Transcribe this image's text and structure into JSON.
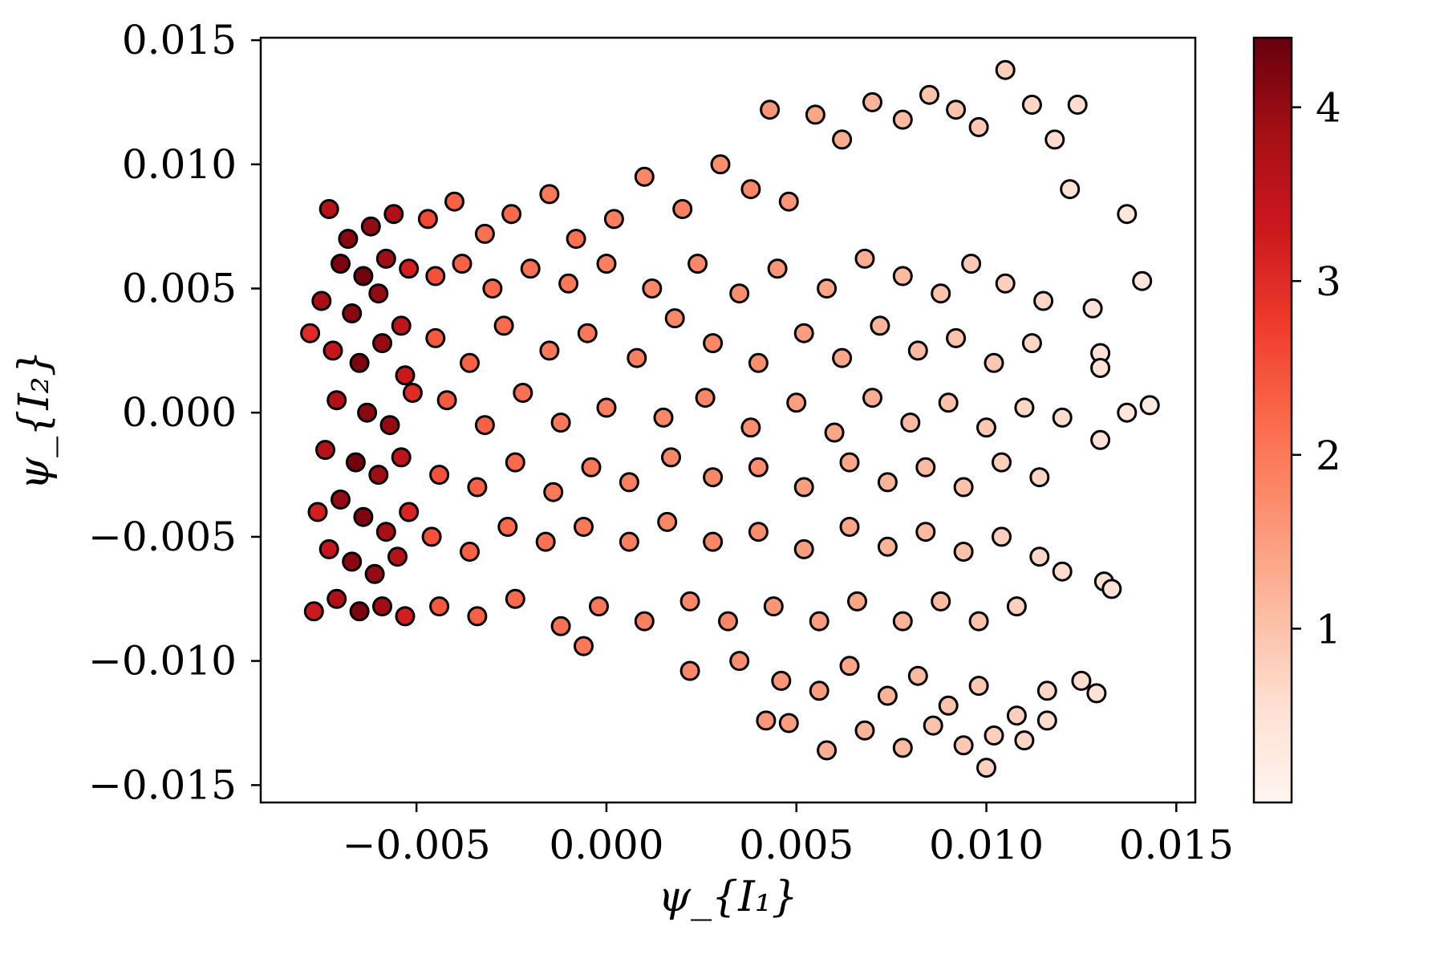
{
  "chart_data": {
    "type": "scatter",
    "xlabel": "ψ_{I₁}",
    "ylabel": "ψ_{I₂}",
    "xlim": [
      -0.0091,
      0.0155
    ],
    "ylim": [
      -0.0157,
      0.0151
    ],
    "x_ticks": [
      -0.005,
      0.0,
      0.005,
      0.01,
      0.015
    ],
    "x_tick_labels": [
      "−0.005",
      "0.000",
      "0.005",
      "0.010",
      "0.015"
    ],
    "y_ticks": [
      0.015,
      0.01,
      0.005,
      0.0,
      -0.005,
      -0.01,
      -0.015
    ],
    "y_tick_labels": [
      "0.015",
      "0.010",
      "0.005",
      "0.000",
      "−0.005",
      "−0.010",
      "−0.015"
    ],
    "grid": false,
    "colormap": "Reds",
    "colorbar": {
      "range": [
        0,
        4.4
      ],
      "ticks": [
        1,
        2,
        3,
        4
      ],
      "tick_labels": [
        "1",
        "2",
        "3",
        "4"
      ],
      "colors": [
        "#fff5f0",
        "#fee0d2",
        "#fcbba1",
        "#fc9272",
        "#fb6a4a",
        "#ef3b2c",
        "#cb181d",
        "#a50f15",
        "#67000d"
      ]
    },
    "marker": {
      "edge_color": "#000000",
      "shape": "circle"
    },
    "points": [
      [
        -0.0073,
        0.0082,
        3.6
      ],
      [
        -0.0068,
        0.007,
        4.1
      ],
      [
        -0.0062,
        0.0075,
        4.0
      ],
      [
        -0.0056,
        0.008,
        3.7
      ],
      [
        -0.007,
        0.006,
        4.2
      ],
      [
        -0.0064,
        0.0055,
        4.3
      ],
      [
        -0.0058,
        0.0062,
        3.9
      ],
      [
        -0.0052,
        0.0058,
        3.2
      ],
      [
        -0.0075,
        0.0045,
        3.8
      ],
      [
        -0.0067,
        0.004,
        4.1
      ],
      [
        -0.006,
        0.0048,
        4.0
      ],
      [
        -0.0054,
        0.0035,
        3.5
      ],
      [
        -0.0072,
        0.0025,
        3.4
      ],
      [
        -0.0065,
        0.002,
        4.2
      ],
      [
        -0.0059,
        0.0028,
        4.0
      ],
      [
        -0.0053,
        0.0015,
        3.3
      ],
      [
        -0.0071,
        0.0005,
        3.7
      ],
      [
        -0.0063,
        0.0,
        4.1
      ],
      [
        -0.0057,
        -0.0005,
        4.0
      ],
      [
        -0.0051,
        0.0008,
        3.0
      ],
      [
        -0.0074,
        -0.0015,
        3.6
      ],
      [
        -0.0066,
        -0.002,
        4.3
      ],
      [
        -0.006,
        -0.0025,
        3.9
      ],
      [
        -0.0054,
        -0.0018,
        3.5
      ],
      [
        -0.007,
        -0.0035,
        4.0
      ],
      [
        -0.0064,
        -0.0042,
        4.2
      ],
      [
        -0.0058,
        -0.0048,
        3.8
      ],
      [
        -0.0052,
        -0.004,
        3.1
      ],
      [
        -0.0073,
        -0.0055,
        3.4
      ],
      [
        -0.0067,
        -0.006,
        4.1
      ],
      [
        -0.0061,
        -0.0065,
        4.0
      ],
      [
        -0.0055,
        -0.0058,
        3.6
      ],
      [
        -0.0071,
        -0.0075,
        3.7
      ],
      [
        -0.0065,
        -0.008,
        4.2
      ],
      [
        -0.0059,
        -0.0078,
        3.9
      ],
      [
        -0.0053,
        -0.0082,
        3.2
      ],
      [
        -0.0078,
        0.0032,
        3.0
      ],
      [
        -0.0076,
        -0.004,
        3.2
      ],
      [
        -0.0077,
        -0.008,
        3.3
      ],
      [
        -0.0047,
        0.0078,
        2.6
      ],
      [
        -0.004,
        0.0085,
        2.3
      ],
      [
        -0.0032,
        0.0072,
        2.1
      ],
      [
        -0.0025,
        0.008,
        2.2
      ],
      [
        -0.0015,
        0.0088,
        2.0
      ],
      [
        -0.0008,
        0.007,
        2.1
      ],
      [
        0.0002,
        0.0078,
        1.9
      ],
      [
        0.001,
        0.0095,
        1.8
      ],
      [
        0.002,
        0.0082,
        1.9
      ],
      [
        0.003,
        0.01,
        1.7
      ],
      [
        0.0038,
        0.009,
        1.8
      ],
      [
        0.0043,
        0.0122,
        1.6
      ],
      [
        0.0048,
        0.0085,
        1.6
      ],
      [
        0.0055,
        0.012,
        1.4
      ],
      [
        0.0062,
        0.011,
        1.3
      ],
      [
        0.007,
        0.0125,
        1.2
      ],
      [
        0.0078,
        0.0118,
        1.1
      ],
      [
        0.0085,
        0.0128,
        1.0
      ],
      [
        0.0092,
        0.0122,
        1.0
      ],
      [
        0.0098,
        0.0115,
        0.9
      ],
      [
        0.0105,
        0.0138,
        0.8
      ],
      [
        0.0112,
        0.0124,
        0.7
      ],
      [
        0.0118,
        0.011,
        0.6
      ],
      [
        0.0124,
        0.0124,
        0.6
      ],
      [
        0.0122,
        0.009,
        0.5
      ],
      [
        -0.0045,
        0.0055,
        2.5
      ],
      [
        -0.0038,
        0.006,
        2.3
      ],
      [
        -0.003,
        0.005,
        2.2
      ],
      [
        -0.002,
        0.0058,
        2.1
      ],
      [
        -0.001,
        0.0052,
        2.0
      ],
      [
        0.0,
        0.006,
        1.9
      ],
      [
        0.0012,
        0.005,
        1.8
      ],
      [
        0.0024,
        0.006,
        1.8
      ],
      [
        0.0035,
        0.0048,
        1.7
      ],
      [
        0.0045,
        0.0058,
        1.6
      ],
      [
        0.0058,
        0.005,
        1.4
      ],
      [
        0.0068,
        0.0062,
        1.3
      ],
      [
        0.0078,
        0.0055,
        1.1
      ],
      [
        0.0088,
        0.0048,
        1.0
      ],
      [
        0.0096,
        0.006,
        0.9
      ],
      [
        0.0105,
        0.0052,
        0.8
      ],
      [
        0.0115,
        0.0045,
        0.7
      ],
      [
        0.0128,
        0.0042,
        0.5
      ],
      [
        0.0141,
        0.0053,
        0.4
      ],
      [
        0.0137,
        0.008,
        0.4
      ],
      [
        -0.0045,
        0.003,
        2.4
      ],
      [
        -0.0036,
        0.002,
        2.3
      ],
      [
        -0.0027,
        0.0035,
        2.2
      ],
      [
        -0.0015,
        0.0025,
        2.0
      ],
      [
        -0.0005,
        0.0032,
        2.0
      ],
      [
        0.0008,
        0.0022,
        1.9
      ],
      [
        0.0018,
        0.0038,
        1.8
      ],
      [
        0.0028,
        0.0028,
        1.8
      ],
      [
        0.004,
        0.002,
        1.7
      ],
      [
        0.0052,
        0.0032,
        1.5
      ],
      [
        0.0062,
        0.0022,
        1.4
      ],
      [
        0.0072,
        0.0035,
        1.2
      ],
      [
        0.0082,
        0.0025,
        1.1
      ],
      [
        0.0092,
        0.003,
        1.0
      ],
      [
        0.0102,
        0.002,
        0.9
      ],
      [
        0.0112,
        0.0028,
        0.7
      ],
      [
        0.013,
        0.0024,
        0.5
      ],
      [
        0.013,
        0.0018,
        0.5
      ],
      [
        -0.0042,
        0.0005,
        2.4
      ],
      [
        -0.0032,
        -0.0005,
        2.3
      ],
      [
        -0.0022,
        0.0008,
        2.1
      ],
      [
        -0.0012,
        -0.0004,
        2.0
      ],
      [
        0.0,
        0.0002,
        1.9
      ],
      [
        0.0015,
        -0.0002,
        1.8
      ],
      [
        0.0026,
        0.0006,
        1.8
      ],
      [
        0.0038,
        -0.0006,
        1.7
      ],
      [
        0.005,
        0.0004,
        1.5
      ],
      [
        0.006,
        -0.0008,
        1.4
      ],
      [
        0.007,
        0.0006,
        1.3
      ],
      [
        0.008,
        -0.0004,
        1.1
      ],
      [
        0.009,
        0.0004,
        1.0
      ],
      [
        0.01,
        -0.0006,
        0.9
      ],
      [
        0.011,
        0.0002,
        0.7
      ],
      [
        0.012,
        -0.0002,
        0.6
      ],
      [
        0.0137,
        0.0,
        0.4
      ],
      [
        0.0143,
        0.0003,
        0.3
      ],
      [
        -0.0044,
        -0.0025,
        2.5
      ],
      [
        -0.0034,
        -0.003,
        2.3
      ],
      [
        -0.0024,
        -0.002,
        2.2
      ],
      [
        -0.0014,
        -0.0032,
        2.0
      ],
      [
        -0.0004,
        -0.0022,
        2.0
      ],
      [
        0.0006,
        -0.0028,
        1.9
      ],
      [
        0.0017,
        -0.0018,
        1.8
      ],
      [
        0.0028,
        -0.0026,
        1.8
      ],
      [
        0.004,
        -0.0022,
        1.7
      ],
      [
        0.0052,
        -0.003,
        1.5
      ],
      [
        0.0064,
        -0.002,
        1.4
      ],
      [
        0.0074,
        -0.0028,
        1.2
      ],
      [
        0.0084,
        -0.0022,
        1.1
      ],
      [
        0.0094,
        -0.003,
        1.0
      ],
      [
        0.0104,
        -0.002,
        0.8
      ],
      [
        0.0114,
        -0.0026,
        0.7
      ],
      [
        0.013,
        -0.0011,
        0.5
      ],
      [
        -0.0046,
        -0.005,
        2.5
      ],
      [
        -0.0036,
        -0.0056,
        2.3
      ],
      [
        -0.0026,
        -0.0046,
        2.2
      ],
      [
        -0.0016,
        -0.0052,
        2.1
      ],
      [
        -0.0006,
        -0.0046,
        2.0
      ],
      [
        0.0006,
        -0.0052,
        1.9
      ],
      [
        0.0016,
        -0.0044,
        1.8
      ],
      [
        0.0028,
        -0.0052,
        1.8
      ],
      [
        0.004,
        -0.0048,
        1.7
      ],
      [
        0.0052,
        -0.0055,
        1.5
      ],
      [
        0.0064,
        -0.0046,
        1.4
      ],
      [
        0.0074,
        -0.0054,
        1.2
      ],
      [
        0.0084,
        -0.0048,
        1.1
      ],
      [
        0.0094,
        -0.0056,
        1.0
      ],
      [
        0.0104,
        -0.005,
        0.8
      ],
      [
        0.0114,
        -0.0058,
        0.7
      ],
      [
        -0.0044,
        -0.0078,
        2.4
      ],
      [
        -0.0034,
        -0.0082,
        2.3
      ],
      [
        -0.0024,
        -0.0075,
        2.2
      ],
      [
        -0.0012,
        -0.0086,
        2.1
      ],
      [
        -0.0002,
        -0.0078,
        2.0
      ],
      [
        0.001,
        -0.0084,
        1.9
      ],
      [
        0.0022,
        -0.0076,
        1.8
      ],
      [
        0.0032,
        -0.0084,
        1.8
      ],
      [
        0.0044,
        -0.0078,
        1.6
      ],
      [
        0.0056,
        -0.0084,
        1.5
      ],
      [
        0.0066,
        -0.0076,
        1.4
      ],
      [
        0.0078,
        -0.0084,
        1.2
      ],
      [
        0.0088,
        -0.0076,
        1.1
      ],
      [
        0.0098,
        -0.0084,
        1.0
      ],
      [
        0.0108,
        -0.0078,
        0.8
      ],
      [
        0.012,
        -0.0064,
        0.6
      ],
      [
        0.0131,
        -0.0068,
        0.5
      ],
      [
        0.0133,
        -0.0071,
        0.5
      ],
      [
        -0.0006,
        -0.0094,
        2.0
      ],
      [
        0.0022,
        -0.0104,
        1.8
      ],
      [
        0.0035,
        -0.01,
        1.7
      ],
      [
        0.0046,
        -0.0108,
        1.6
      ],
      [
        0.0056,
        -0.0112,
        1.5
      ],
      [
        0.0064,
        -0.0102,
        1.4
      ],
      [
        0.0074,
        -0.0114,
        1.2
      ],
      [
        0.0082,
        -0.0106,
        1.1
      ],
      [
        0.009,
        -0.0118,
        1.0
      ],
      [
        0.0098,
        -0.011,
        0.9
      ],
      [
        0.0108,
        -0.0122,
        0.8
      ],
      [
        0.0116,
        -0.0112,
        0.7
      ],
      [
        0.0125,
        -0.0108,
        0.6
      ],
      [
        0.0129,
        -0.0113,
        0.5
      ],
      [
        0.0048,
        -0.0125,
        1.5
      ],
      [
        0.0058,
        -0.0136,
        1.3
      ],
      [
        0.0068,
        -0.0128,
        1.2
      ],
      [
        0.0078,
        -0.0135,
        1.1
      ],
      [
        0.0086,
        -0.0126,
        1.0
      ],
      [
        0.0094,
        -0.0134,
        0.9
      ],
      [
        0.0102,
        -0.013,
        0.8
      ],
      [
        0.011,
        -0.0132,
        0.7
      ],
      [
        0.0116,
        -0.0124,
        0.6
      ],
      [
        0.01,
        -0.0143,
        0.8
      ],
      [
        0.0042,
        -0.0124,
        1.6
      ]
    ]
  }
}
